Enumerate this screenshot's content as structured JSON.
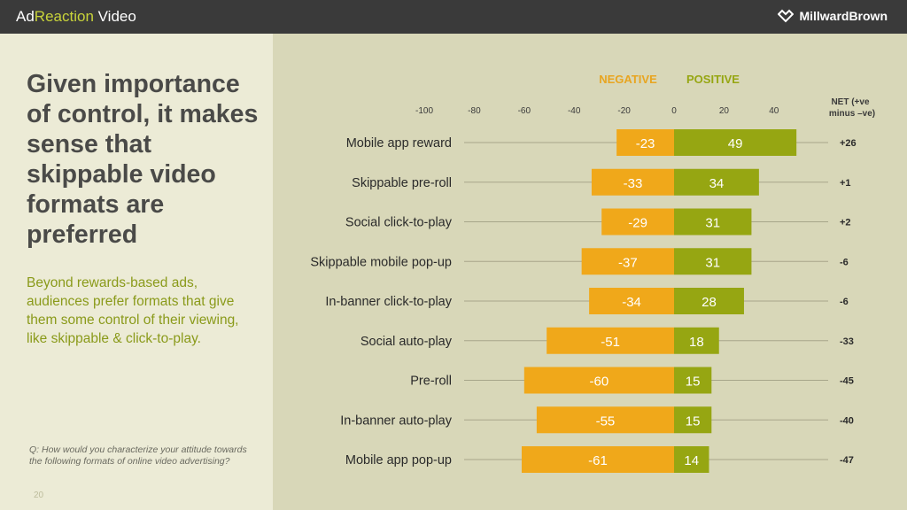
{
  "header": {
    "title_part1": "Ad",
    "title_part2": "Reaction",
    "title_part3": " Video",
    "brand": "MillwardBrown"
  },
  "left": {
    "headline": "Given importance of control, it makes sense that skippable video formats are preferred",
    "subtext": "Beyond rewards-based ads, audiences prefer formats that give them some control of their viewing, like skippable & click-to-play.",
    "question": "Q:  How would you characterize your attitude towards the following formats of online video advertising?",
    "page_number": "20"
  },
  "colors": {
    "negative": "#f0a81a",
    "positive": "#96a612",
    "negative_text": "#e8a520",
    "positive_text": "#96a612"
  },
  "chart_data": {
    "type": "bar",
    "orientation": "horizontal-diverging",
    "legend": [
      "NEGATIVE",
      "POSITIVE"
    ],
    "net_header": [
      "NET (+ve",
      "minus –ve)"
    ],
    "x_ticks": [
      "-100",
      "-80",
      "-60",
      "-40",
      "-20",
      "0",
      "20",
      "40"
    ],
    "xlim": [
      -100,
      40
    ],
    "categories": [
      "Mobile app reward",
      "Skippable pre-roll",
      "Social click-to-play",
      "Skippable mobile pop-up",
      "In-banner click-to-play",
      "Social auto-play",
      "Pre-roll",
      "In-banner auto-play",
      "Mobile app pop-up"
    ],
    "series": [
      {
        "name": "NEGATIVE",
        "values": [
          -23,
          -33,
          -29,
          -37,
          -34,
          -51,
          -60,
          -55,
          -61
        ]
      },
      {
        "name": "POSITIVE",
        "values": [
          49,
          34,
          31,
          31,
          28,
          18,
          15,
          15,
          14
        ]
      }
    ],
    "net": [
      "+26",
      "+1",
      "+2",
      "-6",
      "-6",
      "-33",
      "-45",
      "-40",
      "-47"
    ]
  }
}
